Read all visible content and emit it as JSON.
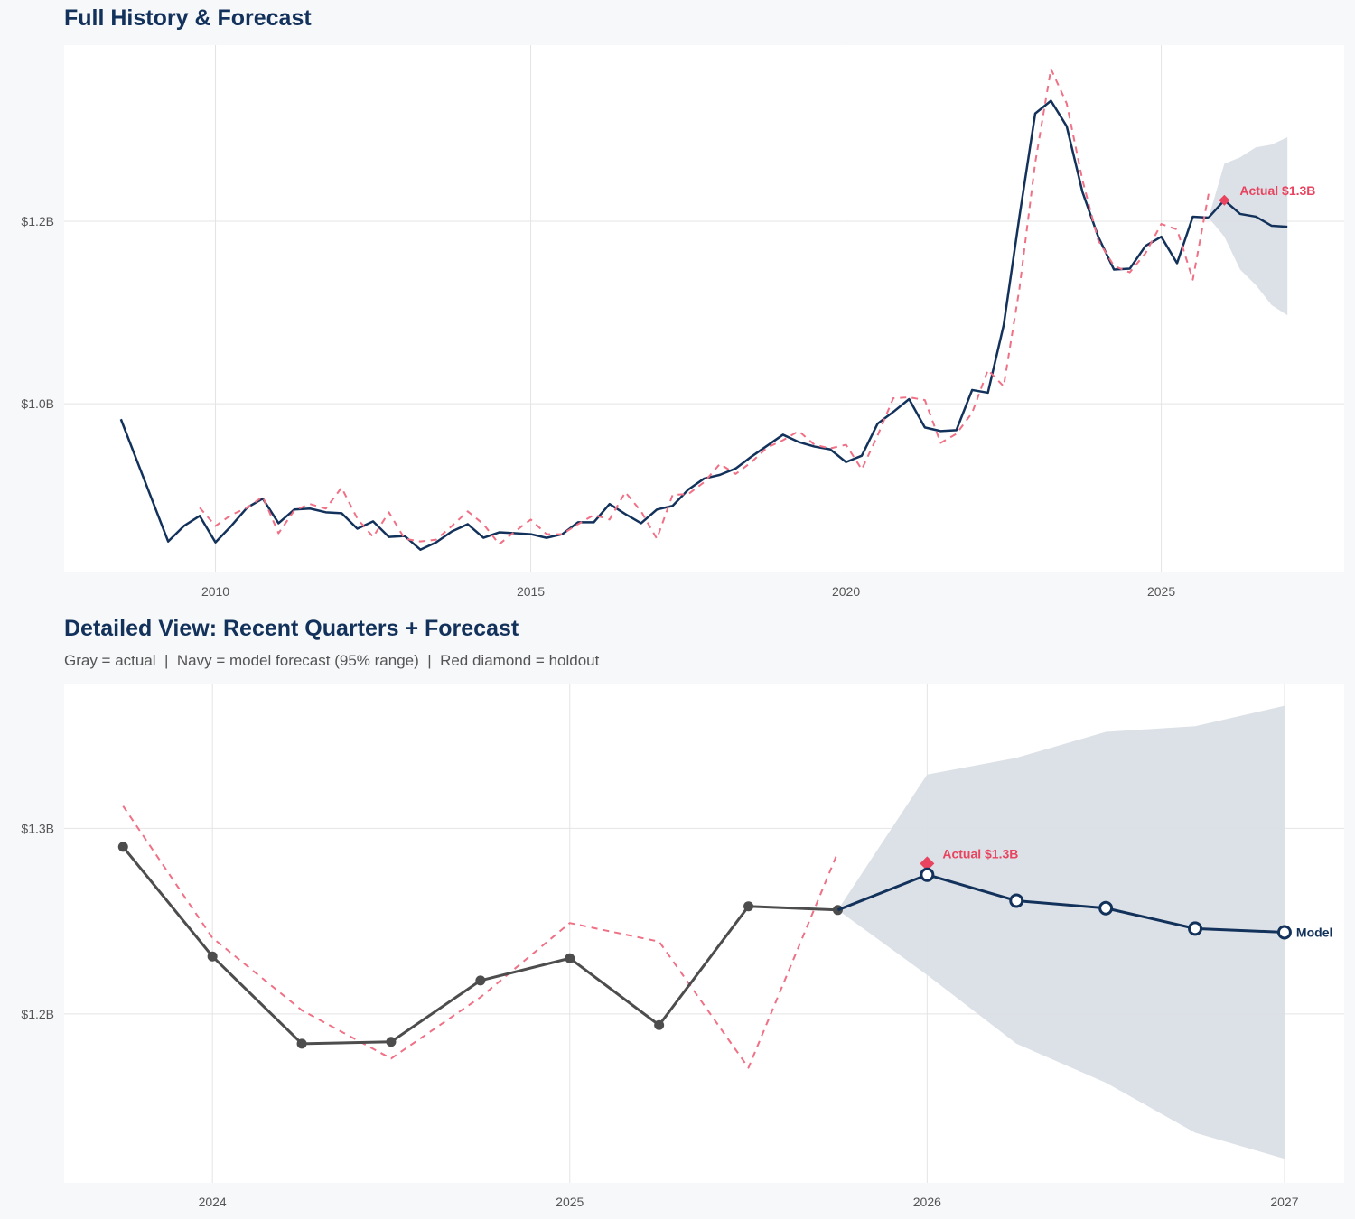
{
  "colors": {
    "actual_navy": "#13325b",
    "actual_gray": "#4d4d4d",
    "fitted_red": "#f07085",
    "holdout_red": "#e8445f",
    "band": "#dadfe6",
    "grid": "#e4e4e4"
  },
  "chart_data": [
    {
      "type": "line",
      "title": "Full History & Forecast",
      "xlabel": "",
      "ylabel": "",
      "xlim": [
        2007.6,
        2027.9
      ],
      "ylim": [
        0.815,
        1.393
      ],
      "grid": true,
      "x_ticks": [
        {
          "value": 2010,
          "label": "2010"
        },
        {
          "value": 2015,
          "label": "2015"
        },
        {
          "value": 2020,
          "label": "2020"
        },
        {
          "value": 2025,
          "label": "2025"
        }
      ],
      "y_ticks": [
        {
          "value": 1.0,
          "label": "$1.0B"
        },
        {
          "value": 1.2,
          "label": "$1.2B"
        }
      ],
      "series": [
        {
          "role": "actual",
          "color": "#13325b",
          "style": "solid",
          "points": [
            [
              2008.5,
              0.983
            ],
            [
              2009.25,
              0.849
            ],
            [
              2009.5,
              0.866
            ],
            [
              2009.75,
              0.877
            ],
            [
              2010,
              0.848
            ],
            [
              2010.25,
              0.866
            ],
            [
              2010.5,
              0.886
            ],
            [
              2010.75,
              0.896
            ],
            [
              2011,
              0.869
            ],
            [
              2011.25,
              0.884
            ],
            [
              2011.5,
              0.885
            ],
            [
              2011.75,
              0.881
            ],
            [
              2012,
              0.88
            ],
            [
              2012.25,
              0.863
            ],
            [
              2012.5,
              0.871
            ],
            [
              2012.75,
              0.854
            ],
            [
              2013,
              0.855
            ],
            [
              2013.25,
              0.84
            ],
            [
              2013.5,
              0.848
            ],
            [
              2013.75,
              0.86
            ],
            [
              2014,
              0.868
            ],
            [
              2014.25,
              0.853
            ],
            [
              2014.5,
              0.859
            ],
            [
              2014.75,
              0.858
            ],
            [
              2015,
              0.857
            ],
            [
              2015.25,
              0.853
            ],
            [
              2015.5,
              0.857
            ],
            [
              2015.75,
              0.87
            ],
            [
              2016,
              0.87
            ],
            [
              2016.25,
              0.89
            ],
            [
              2016.5,
              0.879
            ],
            [
              2016.75,
              0.869
            ],
            [
              2017,
              0.884
            ],
            [
              2017.25,
              0.888
            ],
            [
              2017.5,
              0.906
            ],
            [
              2017.75,
              0.918
            ],
            [
              2018,
              0.922
            ],
            [
              2018.25,
              0.929
            ],
            [
              2018.5,
              0.942
            ],
            [
              2018.75,
              0.954
            ],
            [
              2019,
              0.966
            ],
            [
              2019.25,
              0.958
            ],
            [
              2019.5,
              0.953
            ],
            [
              2019.75,
              0.95
            ],
            [
              2020,
              0.936
            ],
            [
              2020.25,
              0.943
            ],
            [
              2020.5,
              0.978
            ],
            [
              2020.75,
              0.991
            ],
            [
              2021,
              1.005
            ],
            [
              2021.25,
              0.974
            ],
            [
              2021.5,
              0.97
            ],
            [
              2021.75,
              0.971
            ],
            [
              2022,
              1.015
            ],
            [
              2022.25,
              1.012
            ],
            [
              2022.5,
              1.086
            ],
            [
              2022.75,
              1.205
            ],
            [
              2023,
              1.318
            ],
            [
              2023.25,
              1.332
            ],
            [
              2023.5,
              1.304
            ],
            [
              2023.75,
              1.232
            ],
            [
              2024,
              1.183
            ],
            [
              2024.25,
              1.147
            ],
            [
              2024.5,
              1.148
            ],
            [
              2024.75,
              1.173
            ],
            [
              2025,
              1.183
            ],
            [
              2025.25,
              1.154
            ],
            [
              2025.5,
              1.205
            ],
            [
              2025.75,
              1.204
            ]
          ]
        },
        {
          "role": "fitted",
          "color": "#f07085",
          "style": "dashed",
          "points": [
            [
              2009.75,
              0.886
            ],
            [
              2010,
              0.866
            ],
            [
              2010.25,
              0.878
            ],
            [
              2010.5,
              0.886
            ],
            [
              2010.75,
              0.898
            ],
            [
              2011,
              0.858
            ],
            [
              2011.25,
              0.883
            ],
            [
              2011.5,
              0.89
            ],
            [
              2011.75,
              0.885
            ],
            [
              2012,
              0.908
            ],
            [
              2012.25,
              0.874
            ],
            [
              2012.5,
              0.854
            ],
            [
              2012.75,
              0.881
            ],
            [
              2013,
              0.852
            ],
            [
              2013.25,
              0.849
            ],
            [
              2013.5,
              0.851
            ],
            [
              2013.75,
              0.866
            ],
            [
              2014,
              0.882
            ],
            [
              2014.25,
              0.868
            ],
            [
              2014.5,
              0.846
            ],
            [
              2014.75,
              0.86
            ],
            [
              2015,
              0.873
            ],
            [
              2015.25,
              0.857
            ],
            [
              2015.5,
              0.857
            ],
            [
              2015.75,
              0.868
            ],
            [
              2016,
              0.878
            ],
            [
              2016.25,
              0.873
            ],
            [
              2016.5,
              0.903
            ],
            [
              2016.75,
              0.882
            ],
            [
              2017,
              0.852
            ],
            [
              2017.25,
              0.9
            ],
            [
              2017.5,
              0.901
            ],
            [
              2017.75,
              0.914
            ],
            [
              2018,
              0.934
            ],
            [
              2018.25,
              0.923
            ],
            [
              2018.5,
              0.936
            ],
            [
              2018.75,
              0.952
            ],
            [
              2019,
              0.96
            ],
            [
              2019.25,
              0.97
            ],
            [
              2019.5,
              0.955
            ],
            [
              2019.75,
              0.951
            ],
            [
              2020,
              0.955
            ],
            [
              2020.25,
              0.928
            ],
            [
              2020.5,
              0.965
            ],
            [
              2020.75,
              1.006
            ],
            [
              2021,
              1.007
            ],
            [
              2021.25,
              1.004
            ],
            [
              2021.5,
              0.957
            ],
            [
              2021.75,
              0.967
            ],
            [
              2022,
              0.99
            ],
            [
              2022.25,
              1.037
            ],
            [
              2022.5,
              1.019
            ],
            [
              2022.75,
              1.126
            ],
            [
              2023,
              1.264
            ],
            [
              2023.25,
              1.367
            ],
            [
              2023.5,
              1.329
            ],
            [
              2023.75,
              1.245
            ],
            [
              2024,
              1.179
            ],
            [
              2024.25,
              1.151
            ],
            [
              2024.5,
              1.144
            ],
            [
              2024.75,
              1.165
            ],
            [
              2025,
              1.197
            ],
            [
              2025.25,
              1.191
            ],
            [
              2025.5,
              1.136
            ],
            [
              2025.75,
              1.23
            ]
          ]
        },
        {
          "role": "forecast",
          "color": "#13325b",
          "style": "solid",
          "points": [
            [
              2025.75,
              1.204
            ],
            [
              2026,
              1.223
            ],
            [
              2026.25,
              1.208
            ],
            [
              2026.5,
              1.205
            ],
            [
              2026.75,
              1.195
            ],
            [
              2027,
              1.194
            ]
          ]
        }
      ],
      "band": {
        "x": [
          2025.75,
          2026,
          2026.25,
          2026.5,
          2026.75,
          2027
        ],
        "upper": [
          1.204,
          1.263,
          1.27,
          1.281,
          1.284,
          1.292
        ],
        "lower": [
          1.204,
          1.183,
          1.147,
          1.13,
          1.108,
          1.097
        ]
      },
      "holdout": {
        "x": 2026,
        "y": 1.223,
        "label": "Actual $1.3B"
      }
    },
    {
      "type": "line",
      "title": "Detailed View: Recent Quarters + Forecast",
      "subtitle": "Gray = actual  |  Navy = model forecast (95% range)  |  Red diamond = holdout",
      "xlabel": "",
      "ylabel": "",
      "xlim": [
        2023.585,
        2027.167
      ],
      "ylim": [
        1.109,
        1.378
      ],
      "grid": true,
      "x_ticks": [
        {
          "value": 2024,
          "label": "2024"
        },
        {
          "value": 2025,
          "label": "2025"
        },
        {
          "value": 2026,
          "label": "2026"
        },
        {
          "value": 2027,
          "label": "2027"
        }
      ],
      "y_ticks": [
        {
          "value": 1.2,
          "label": "$1.2B"
        },
        {
          "value": 1.3,
          "label": "$1.3B"
        }
      ],
      "series": [
        {
          "role": "fitted",
          "color": "#f07085",
          "style": "dashed",
          "points": [
            [
              2023.75,
              1.312
            ],
            [
              2024,
              1.241
            ],
            [
              2024.25,
              1.202
            ],
            [
              2024.5,
              1.176
            ],
            [
              2024.75,
              1.209
            ],
            [
              2025,
              1.249
            ],
            [
              2025.25,
              1.239
            ],
            [
              2025.5,
              1.171
            ],
            [
              2025.75,
              1.287
            ]
          ]
        },
        {
          "role": "actual",
          "color": "#4d4d4d",
          "style": "solid",
          "markers": "filled",
          "points": [
            [
              2023.75,
              1.29
            ],
            [
              2024,
              1.231
            ],
            [
              2024.25,
              1.184
            ],
            [
              2024.5,
              1.185
            ],
            [
              2024.75,
              1.218
            ],
            [
              2025,
              1.23
            ],
            [
              2025.25,
              1.194
            ],
            [
              2025.5,
              1.258
            ],
            [
              2025.75,
              1.256
            ]
          ]
        },
        {
          "role": "forecast",
          "name": "Model",
          "color": "#13325b",
          "style": "solid",
          "markers": "open",
          "points": [
            [
              2025.75,
              1.256
            ],
            [
              2026,
              1.275
            ],
            [
              2026.25,
              1.261
            ],
            [
              2026.5,
              1.257
            ],
            [
              2026.75,
              1.246
            ],
            [
              2027,
              1.244
            ]
          ]
        }
      ],
      "band": {
        "x": [
          2025.75,
          2026,
          2026.25,
          2026.5,
          2026.75,
          2027
        ],
        "upper": [
          1.256,
          1.329,
          1.338,
          1.352,
          1.355,
          1.366
        ],
        "lower": [
          1.256,
          1.221,
          1.184,
          1.163,
          1.136,
          1.122
        ]
      },
      "holdout": {
        "x": 2026,
        "y": 1.281,
        "label": "Actual $1.3B"
      },
      "end_label": "Model"
    }
  ]
}
